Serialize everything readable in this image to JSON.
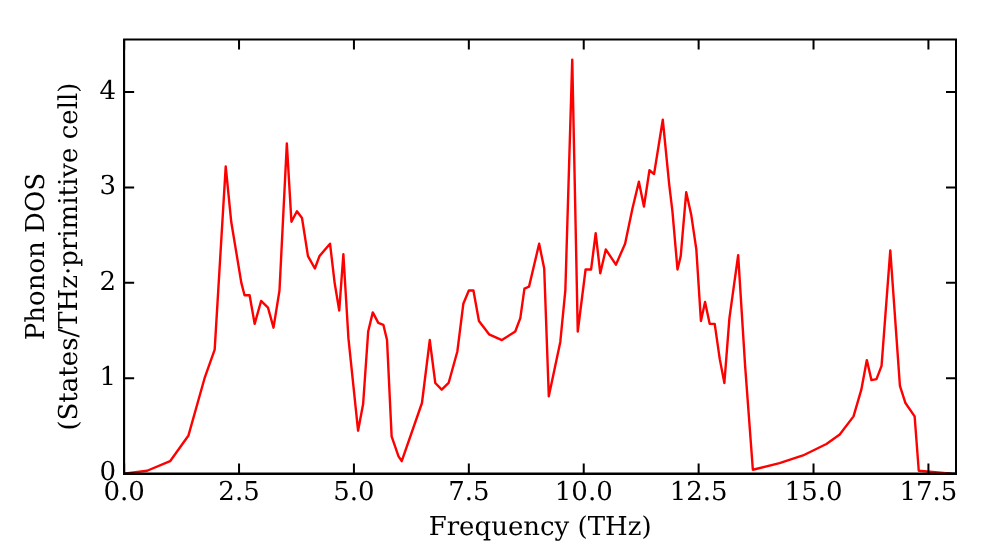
{
  "chart_data": {
    "type": "line",
    "xlabel": "Frequency (THz)",
    "ylabel": "Phonon DOS\n(States/THz·primitive cell)",
    "x": [
      0,
      0.5,
      1.0,
      1.4,
      1.75,
      1.97,
      2.21,
      2.33,
      2.55,
      2.62,
      2.73,
      2.84,
      2.98,
      3.13,
      3.25,
      3.38,
      3.54,
      3.64,
      3.76,
      3.87,
      4.0,
      4.15,
      4.25,
      4.48,
      4.58,
      4.68,
      4.77,
      4.88,
      5.09,
      5.2,
      5.31,
      5.41,
      5.53,
      5.64,
      5.72,
      5.82,
      5.97,
      6.04,
      6.48,
      6.65,
      6.77,
      6.91,
      7.06,
      7.25,
      7.38,
      7.5,
      7.6,
      7.72,
      7.94,
      8.22,
      8.51,
      8.62,
      8.71,
      8.81,
      9.03,
      9.14,
      9.24,
      9.49,
      9.6,
      9.75,
      9.87,
      10.04,
      10.16,
      10.26,
      10.36,
      10.48,
      10.7,
      10.9,
      11.06,
      11.2,
      11.31,
      11.43,
      11.53,
      11.72,
      11.86,
      11.93,
      12.04,
      12.11,
      12.23,
      12.34,
      12.45,
      12.55,
      12.64,
      12.74,
      12.85,
      12.96,
      13.06,
      13.17,
      13.36,
      13.51,
      13.68,
      14.26,
      14.77,
      15.28,
      15.57,
      15.87,
      16.04,
      16.16,
      16.26,
      16.37,
      16.48,
      16.67,
      16.88,
      17.0,
      17.2,
      17.29,
      18.0
    ],
    "values": [
      0,
      0.03,
      0.13,
      0.4,
      1.0,
      1.3,
      3.22,
      2.64,
      2.0,
      1.87,
      1.87,
      1.57,
      1.81,
      1.74,
      1.53,
      1.92,
      3.46,
      2.64,
      2.75,
      2.68,
      2.28,
      2.15,
      2.28,
      2.41,
      2.0,
      1.71,
      2.3,
      1.42,
      0.45,
      0.73,
      1.49,
      1.69,
      1.58,
      1.56,
      1.4,
      0.39,
      0.18,
      0.13,
      0.74,
      1.4,
      0.95,
      0.88,
      0.95,
      1.28,
      1.78,
      1.92,
      1.92,
      1.6,
      1.46,
      1.4,
      1.49,
      1.63,
      1.94,
      1.96,
      2.41,
      2.15,
      0.81,
      1.38,
      1.92,
      4.34,
      1.49,
      2.14,
      2.14,
      2.52,
      2.1,
      2.35,
      2.19,
      2.41,
      2.78,
      3.06,
      2.8,
      3.18,
      3.14,
      3.71,
      3.03,
      2.75,
      2.14,
      2.28,
      2.95,
      2.71,
      2.35,
      1.6,
      1.8,
      1.57,
      1.57,
      1.2,
      0.95,
      1.63,
      2.29,
      1.14,
      0.04,
      0.11,
      0.19,
      0.31,
      0.41,
      0.6,
      0.88,
      1.19,
      0.98,
      0.99,
      1.13,
      2.34,
      0.92,
      0.74,
      0.6,
      0.03,
      0
    ],
    "color": "#ff0000",
    "marker": "none",
    "line_style": "solid",
    "grid": false,
    "legend": false,
    "xlim": [
      0,
      18.1
    ],
    "ylim": [
      0,
      4.55
    ],
    "xticks": [
      {
        "value": 0,
        "label": "0.0"
      },
      {
        "value": 2.5,
        "label": "2.5"
      },
      {
        "value": 5,
        "label": "5.0"
      },
      {
        "value": 7.5,
        "label": "7.5"
      },
      {
        "value": 10,
        "label": "10.0"
      },
      {
        "value": 12.5,
        "label": "12.5"
      },
      {
        "value": 15,
        "label": "15.0"
      },
      {
        "value": 17.5,
        "label": "17.5"
      }
    ],
    "yticks": [
      0,
      1,
      2,
      3,
      4
    ]
  }
}
